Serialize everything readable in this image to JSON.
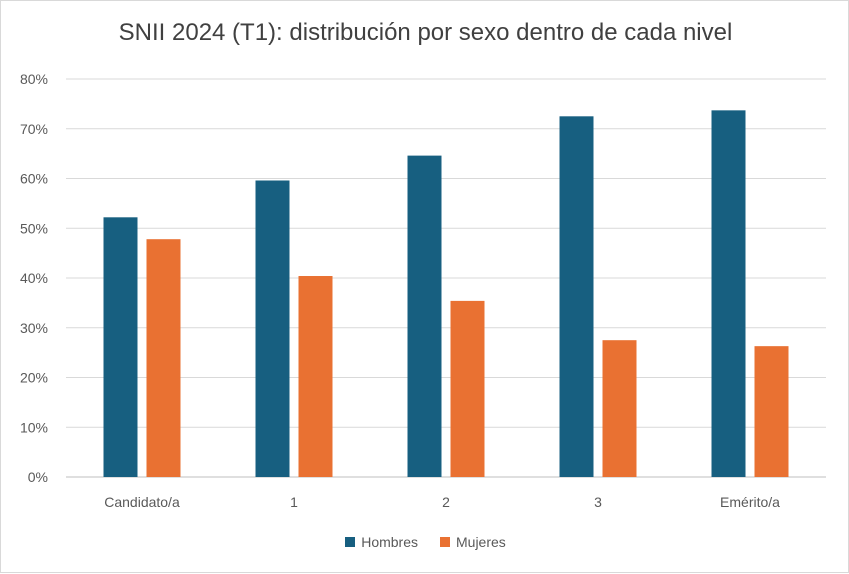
{
  "chart_data": {
    "type": "bar",
    "title": "SNII 2024 (T1): distribución por sexo dentro de cada nivel",
    "categories": [
      "Candidato/a",
      "1",
      "2",
      "3",
      "Emérito/a"
    ],
    "series": [
      {
        "name": "Hombres",
        "color": "#175f80",
        "values": [
          52.2,
          59.6,
          64.6,
          72.5,
          73.7
        ]
      },
      {
        "name": "Mujeres",
        "color": "#e97132",
        "values": [
          47.8,
          40.4,
          35.4,
          27.5,
          26.3
        ]
      }
    ],
    "y_ticks": [
      "0%",
      "10%",
      "20%",
      "30%",
      "40%",
      "50%",
      "60%",
      "70%",
      "80%"
    ],
    "ylim": [
      0,
      80
    ],
    "grid": true,
    "legend_position": "bottom"
  }
}
